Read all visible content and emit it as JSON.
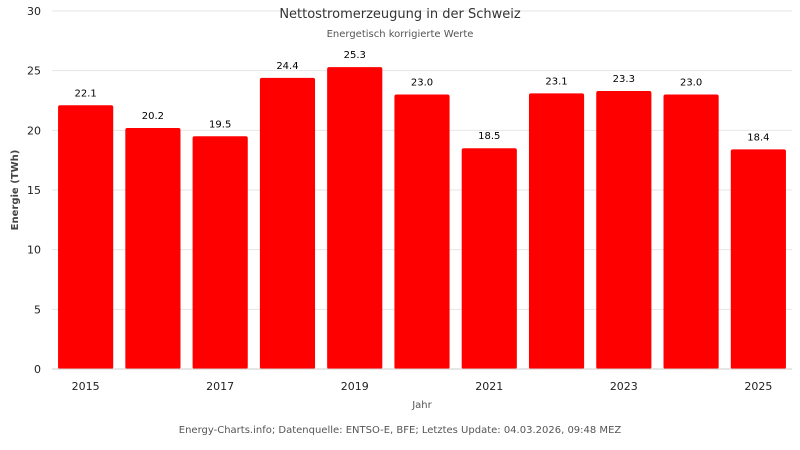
{
  "chart_data": {
    "type": "bar",
    "title": "Nettostromerzeugung in der Schweiz",
    "subtitle": "Energetisch korrigierte Werte",
    "categories": [
      "2015",
      "2016",
      "2017",
      "2018",
      "2019",
      "2020",
      "2021",
      "2022",
      "2023",
      "2024",
      "2025"
    ],
    "x_tick_labels": [
      "2015",
      "2017",
      "2019",
      "2021",
      "2023",
      "2025"
    ],
    "values": [
      22.1,
      20.2,
      19.5,
      24.4,
      25.3,
      23.0,
      18.5,
      23.1,
      23.3,
      23.0,
      18.4
    ],
    "value_labels": [
      "22.1",
      "20.2",
      "19.5",
      "24.4",
      "25.3",
      "23.0",
      "18.5",
      "23.1",
      "23.3",
      "23.0",
      "18.4"
    ],
    "xlabel": "Jahr",
    "ylabel": "Energie (TWh)",
    "ylim": [
      0,
      30
    ],
    "yticks": [
      0,
      5,
      10,
      15,
      20,
      25,
      30
    ],
    "grid": true,
    "legend": "none",
    "bar_color": "#ff0000",
    "credits": "Energy-Charts.info; Datenquelle: ENTSO-E, BFE; Letztes Update: 04.03.2026, 09:48 MEZ"
  }
}
